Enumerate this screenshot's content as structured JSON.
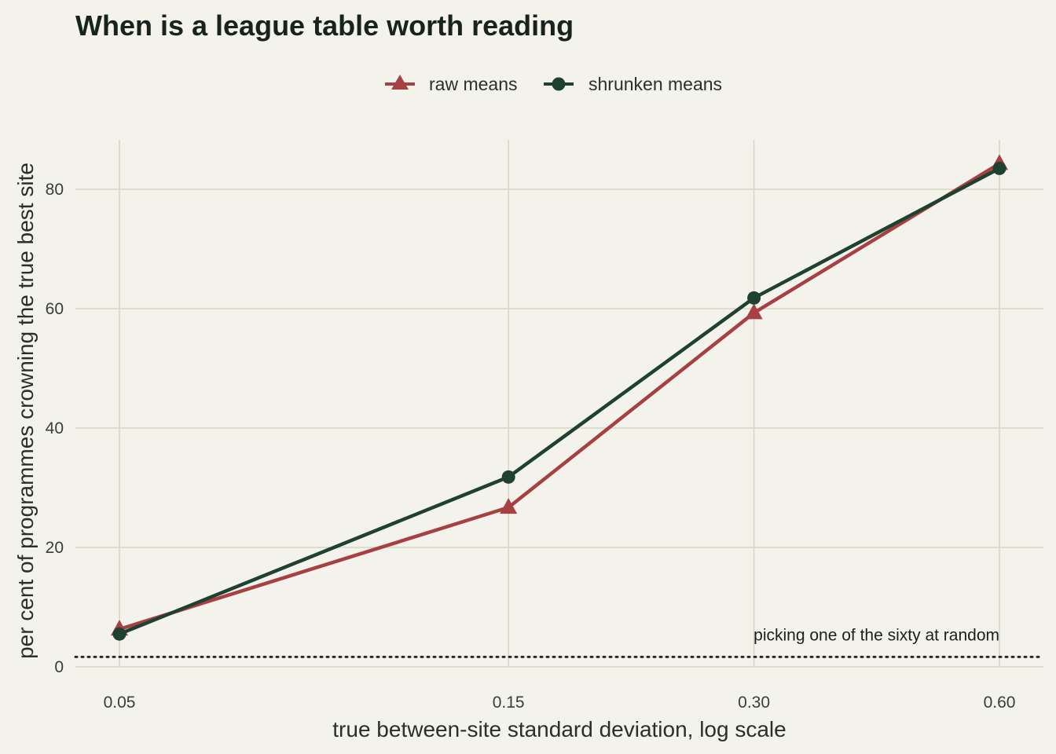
{
  "chart_data": {
    "type": "line",
    "title": "When is a league table worth reading",
    "xlabel": "true between-site standard deviation, log scale",
    "ylabel": "per cent of programmes crowning the true best site",
    "x_scale": "log",
    "x": [
      0.05,
      0.15,
      0.3,
      0.6
    ],
    "x_tick_labels": [
      "0.05",
      "0.15",
      "0.30",
      "0.60"
    ],
    "y_ticks": [
      0,
      20,
      40,
      60,
      80
    ],
    "ylim": [
      0,
      88
    ],
    "grid": true,
    "legend_position": "top",
    "series": [
      {
        "name": "raw means",
        "values": [
          6.3,
          26.7,
          59.3,
          84.3
        ],
        "color": "#a64042",
        "marker": "triangle"
      },
      {
        "name": "shrunken means",
        "values": [
          5.5,
          31.8,
          61.8,
          83.5
        ],
        "color": "#1e4130",
        "marker": "circle"
      }
    ],
    "reference_line": {
      "value": 1.667,
      "label": "picking one of the sixty at random",
      "style": "dotted",
      "color": "#2a2a2a"
    }
  }
}
